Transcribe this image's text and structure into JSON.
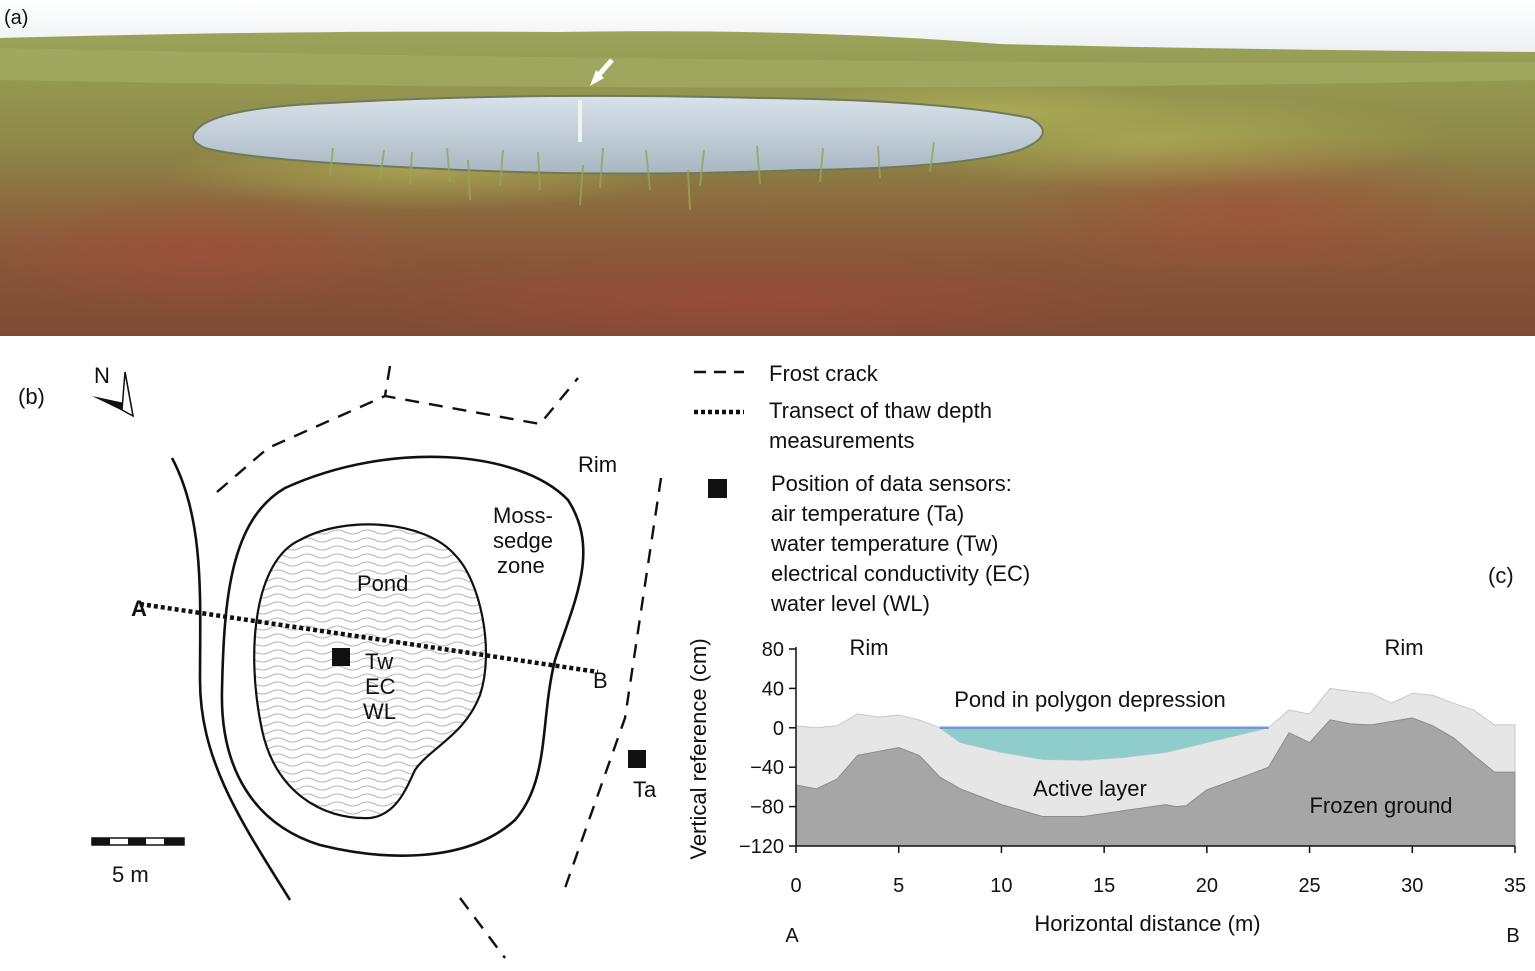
{
  "panel_a": {
    "label": "(a)"
  },
  "panel_b": {
    "label": "(b)",
    "north": "N",
    "rim": "Rim",
    "moss_zone": [
      "Moss-",
      "sedge",
      "zone"
    ],
    "pond": "Pond",
    "point_a": "A",
    "point_b": "B",
    "pond_sensors": [
      "Tw",
      "EC",
      "WL"
    ],
    "air_sensor": "Ta",
    "scale": "5 m"
  },
  "legend": {
    "frost_crack": "Frost crack",
    "transect": [
      "Transect of thaw depth",
      "measurements"
    ],
    "sensors": [
      "Position of data sensors:",
      "air temperature (Ta)",
      "water temperature (Tw)",
      "electrical conductivity (EC)",
      "water level (WL)"
    ]
  },
  "panel_c": {
    "label": "(c)"
  },
  "chart_data": {
    "type": "area",
    "xlabel": "Horizontal distance (m)",
    "ylabel": "Vertical reference (cm)",
    "xlim": [
      0,
      35
    ],
    "ylim": [
      -120,
      80
    ],
    "xticks": [
      0,
      5,
      10,
      15,
      20,
      25,
      30,
      35
    ],
    "yticks": [
      80,
      40,
      0,
      -40,
      -80,
      -120
    ],
    "endpoint_labels": {
      "start": "A",
      "end": "B"
    },
    "annotations": {
      "rim_left": "Rim",
      "rim_right": "Rim",
      "pond": "Pond in polygon depression",
      "active_layer": "Active layer",
      "frozen_ground": "Frozen ground"
    },
    "colors": {
      "surface_fill": "#e6e6e6",
      "frozen_fill": "#a6a6a6",
      "water_fill": "#8ecdcb",
      "water_line": "#6f9bd6"
    },
    "surface": {
      "x": [
        0,
        1,
        2,
        3,
        4,
        5,
        6,
        7,
        8,
        10,
        12,
        14,
        16,
        18,
        20,
        22,
        23,
        24,
        25,
        26,
        27,
        28,
        29,
        30,
        31,
        32,
        33,
        34,
        35
      ],
      "y": [
        2,
        0,
        2,
        14,
        11,
        13,
        8,
        0,
        -15,
        -25,
        -32,
        -33,
        -30,
        -25,
        -15,
        -5,
        0,
        18,
        14,
        40,
        37,
        35,
        25,
        35,
        33,
        25,
        18,
        3,
        3
      ]
    },
    "frozen_table": {
      "x": [
        0,
        1,
        2,
        3,
        4,
        5,
        6,
        7,
        8,
        10,
        12,
        14,
        16,
        18,
        18.5,
        19,
        20,
        22,
        23,
        24,
        25,
        26,
        27,
        28,
        30,
        31,
        32,
        33,
        34,
        35
      ],
      "y": [
        -58,
        -62,
        -52,
        -28,
        -24,
        -20,
        -28,
        -50,
        -62,
        -78,
        -90,
        -90,
        -84,
        -78,
        -80,
        -79,
        -63,
        -48,
        -40,
        -5,
        -15,
        8,
        4,
        3,
        10,
        2,
        -10,
        -28,
        -45,
        -45
      ]
    },
    "water": {
      "x": [
        7,
        8,
        10,
        12,
        14,
        16,
        18,
        20,
        22,
        23
      ],
      "y": [
        0,
        -15,
        -25,
        -32,
        -33,
        -30,
        -25,
        -15,
        -5,
        0
      ],
      "level": 0
    }
  }
}
